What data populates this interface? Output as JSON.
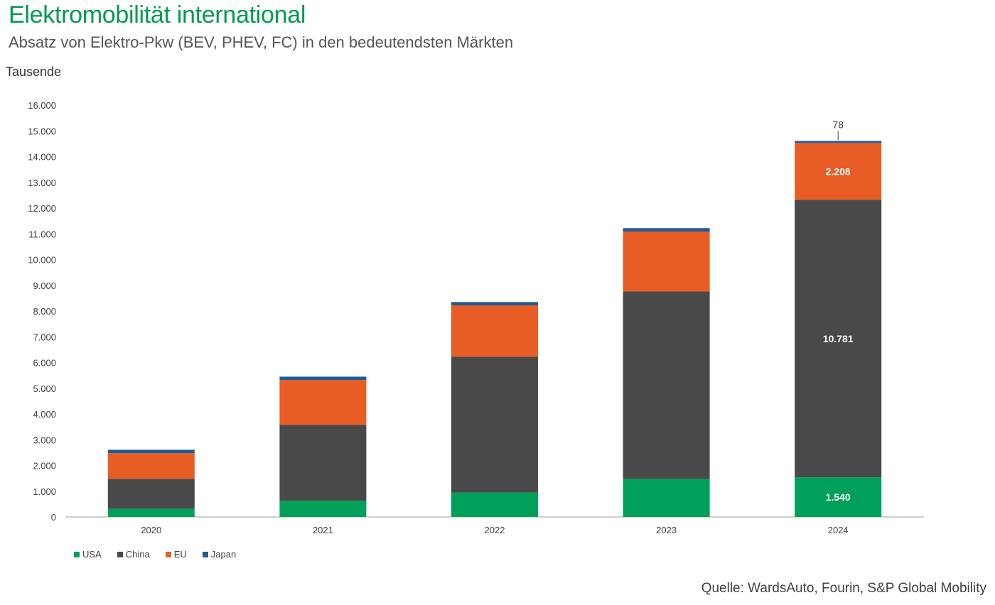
{
  "header": {
    "title": "Elektromobilität international",
    "subtitle": "Absatz von Elektro-Pkw (BEV, PHEV, FC) in den bedeutendsten Märkten",
    "unit": "Tausende"
  },
  "footer": {
    "source": "Quelle: WardsAuto, Fourin, S&P Global Mobility"
  },
  "colors": {
    "USA": "#00a05a",
    "China": "#494949",
    "EU": "#e85c25",
    "Japan": "#1f5a96"
  },
  "chart_data": {
    "type": "bar",
    "stacked": true,
    "categories": [
      "2020",
      "2021",
      "2022",
      "2023",
      "2024"
    ],
    "series": [
      {
        "name": "USA",
        "values": [
          320,
          630,
          950,
          1480,
          1540
        ]
      },
      {
        "name": "China",
        "values": [
          1160,
          2950,
          5270,
          7280,
          10781
        ]
      },
      {
        "name": "EU",
        "values": [
          1000,
          1740,
          2000,
          2330,
          2208
        ]
      },
      {
        "name": "Japan",
        "values": [
          130,
          130,
          130,
          130,
          78
        ]
      }
    ],
    "data_labels": [
      {
        "series": "USA",
        "category": "2024",
        "text": "1.540",
        "position": "inside"
      },
      {
        "series": "China",
        "category": "2024",
        "text": "10.781",
        "position": "inside"
      },
      {
        "series": "EU",
        "category": "2024",
        "text": "2.208",
        "position": "inside"
      },
      {
        "series": "Japan",
        "category": "2024",
        "text": "78",
        "position": "above"
      }
    ],
    "y_ticks": [
      "0",
      "1.000",
      "2.000",
      "3.000",
      "4.000",
      "5.000",
      "6.000",
      "7.000",
      "8.000",
      "9.000",
      "10.000",
      "11.000",
      "12.000",
      "13.000",
      "14.000",
      "15.000",
      "16.000"
    ],
    "ylim": [
      0,
      16000
    ],
    "ylabel": "Tausende",
    "legend_position": "bottom-left",
    "grid": false
  }
}
